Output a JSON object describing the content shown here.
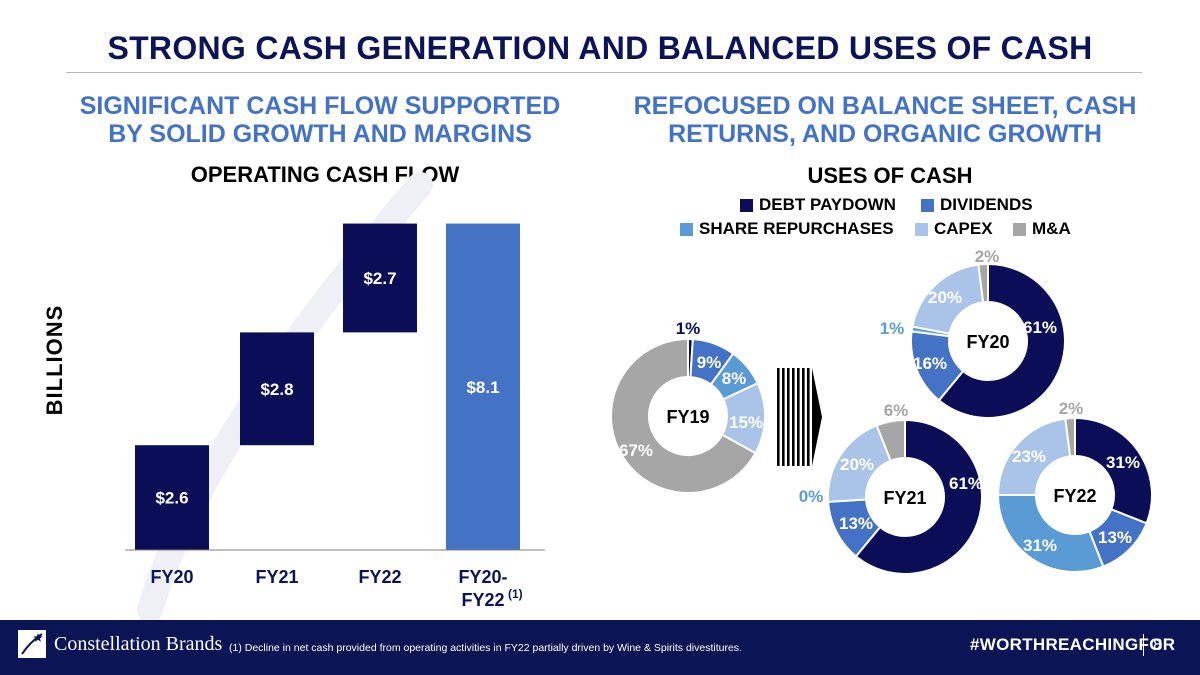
{
  "title": "STRONG CASH GENERATION AND BALANCED USES OF CASH",
  "left": {
    "subtitle_line1": "SIGNIFICANT CASH FLOW SUPPORTED",
    "subtitle_line2": "BY SOLID GROWTH AND MARGINS"
  },
  "right": {
    "subtitle_line1": "REFOCUSED ON BALANCE SHEET, CASH",
    "subtitle_line2": "RETURNS, AND ORGANIC GROWTH"
  },
  "legend": [
    {
      "label": "DEBT PAYDOWN",
      "color": "#0b0e57"
    },
    {
      "label": "DIVIDENDS",
      "color": "#4472c4"
    },
    {
      "label": "SHARE REPURCHASES",
      "color": "#5b9bd5"
    },
    {
      "label": "CAPEX",
      "color": "#a9c4e8"
    },
    {
      "label": "M&A",
      "color": "#a6a6a6"
    }
  ],
  "footer": {
    "brand": "Constellation Brands",
    "footnote": "(1) Decline in net cash provided from operating activities in FY22 partially driven by Wine & Spirits divestitures.",
    "hashtag": "#WORTHREACHINGFOR",
    "page": "8"
  },
  "chart_data": [
    {
      "type": "bar",
      "subtype": "waterfall",
      "title": "OPERATING CASH FLOW",
      "ylabel": "BILLIONS",
      "categories": [
        "FY20",
        "FY21",
        "FY22",
        "FY20-FY22"
      ],
      "category_labels_line1": [
        "FY20",
        "FY21",
        "FY22",
        "FY20-"
      ],
      "category_labels_line2": [
        "",
        "",
        "",
        "FY22"
      ],
      "category_superscript": [
        "",
        "",
        "",
        "(1)"
      ],
      "values": [
        2.6,
        2.8,
        2.7,
        8.1
      ],
      "data_labels": [
        "$2.6",
        "$2.8",
        "$2.7",
        "$8.1"
      ],
      "colors": [
        "#0b0e57",
        "#0b0e57",
        "#0b0e57",
        "#4472c4"
      ]
    },
    {
      "type": "pie",
      "subtype": "donut",
      "title": "USES OF CASH",
      "charts": [
        {
          "name": "FY19",
          "values": [
            1,
            9,
            8,
            15,
            67
          ],
          "labels": [
            "1%",
            "9%",
            "8%",
            "15%",
            "67%"
          ]
        },
        {
          "name": "FY20",
          "values": [
            61,
            16,
            1,
            20,
            2
          ],
          "labels": [
            "61%",
            "16%",
            "1%",
            "20%",
            "2%"
          ]
        },
        {
          "name": "FY21",
          "values": [
            61,
            13,
            0,
            20,
            6
          ],
          "labels": [
            "61%",
            "13%",
            "0%",
            "20%",
            "6%"
          ]
        },
        {
          "name": "FY22",
          "values": [
            31,
            13,
            31,
            23,
            2
          ],
          "labels": [
            "31%",
            "13%",
            "31%",
            "23%",
            "2%"
          ]
        }
      ],
      "segments": [
        "DEBT PAYDOWN",
        "DIVIDENDS",
        "SHARE REPURCHASES",
        "CAPEX",
        "M&A"
      ]
    }
  ]
}
